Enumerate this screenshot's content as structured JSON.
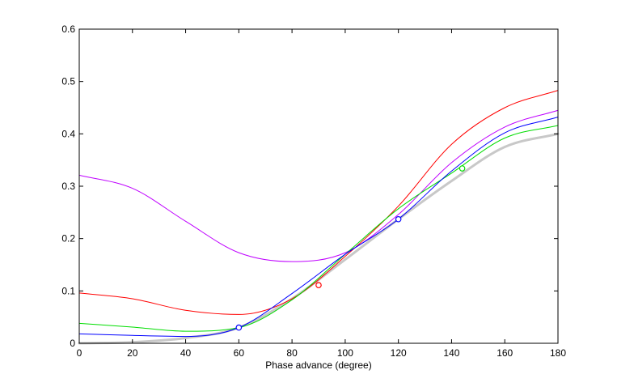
{
  "chart_data": {
    "type": "line",
    "xlabel": "Phase advance (degree)",
    "ylabel": "",
    "title": "",
    "xlim": [
      0,
      180
    ],
    "ylim": [
      0,
      0.6
    ],
    "xticks": [
      0,
      20,
      40,
      60,
      80,
      100,
      120,
      140,
      160,
      180
    ],
    "xtick_labels": [
      "0",
      "20",
      "40",
      "60",
      "80",
      "100",
      "120",
      "140",
      "160",
      "180"
    ],
    "yticks": [
      0,
      0.1,
      0.2,
      0.3,
      0.4,
      0.5,
      0.6
    ],
    "ytick_labels": [
      "0",
      "0.1",
      "0.2",
      "0.3",
      "0.4",
      "0.5",
      "0.6"
    ],
    "grid": false,
    "legend": "none",
    "series": [
      {
        "color": "#c8c8c8",
        "x": [
          0,
          20,
          40,
          60,
          80,
          100,
          120,
          140,
          160,
          180
        ],
        "y": [
          0,
          0.002,
          0.01,
          0.03,
          0.085,
          0.16,
          0.237,
          0.31,
          0.375,
          0.4
        ]
      },
      {
        "color": "#ff0000",
        "marker_x": 90,
        "marker_y": 0.111,
        "x": [
          0,
          20,
          40,
          60,
          80,
          100,
          120,
          140,
          160,
          180
        ],
        "y": [
          0.096,
          0.085,
          0.063,
          0.055,
          0.085,
          0.166,
          0.262,
          0.38,
          0.45,
          0.483
        ]
      },
      {
        "color": "#bf00ff",
        "x": [
          0,
          20,
          40,
          60,
          80,
          100,
          120,
          140,
          160,
          180
        ],
        "y": [
          0.321,
          0.296,
          0.233,
          0.173,
          0.156,
          0.173,
          0.246,
          0.345,
          0.413,
          0.445
        ]
      },
      {
        "color": "#00dd00",
        "marker_x": 144,
        "marker_y": 0.334,
        "x": [
          0,
          20,
          40,
          60,
          80,
          100,
          120,
          140,
          160,
          180
        ],
        "y": [
          0.038,
          0.031,
          0.023,
          0.03,
          0.083,
          0.17,
          0.257,
          0.325,
          0.392,
          0.416
        ]
      },
      {
        "color": "#0000ff",
        "marker_x": [
          60,
          120
        ],
        "marker_y": [
          0.03,
          0.237
        ],
        "x": [
          0,
          20,
          40,
          60,
          80,
          100,
          120,
          140,
          160,
          180
        ],
        "y": [
          0.018,
          0.015,
          0.013,
          0.03,
          0.095,
          0.17,
          0.237,
          0.329,
          0.402,
          0.432
        ]
      }
    ]
  }
}
